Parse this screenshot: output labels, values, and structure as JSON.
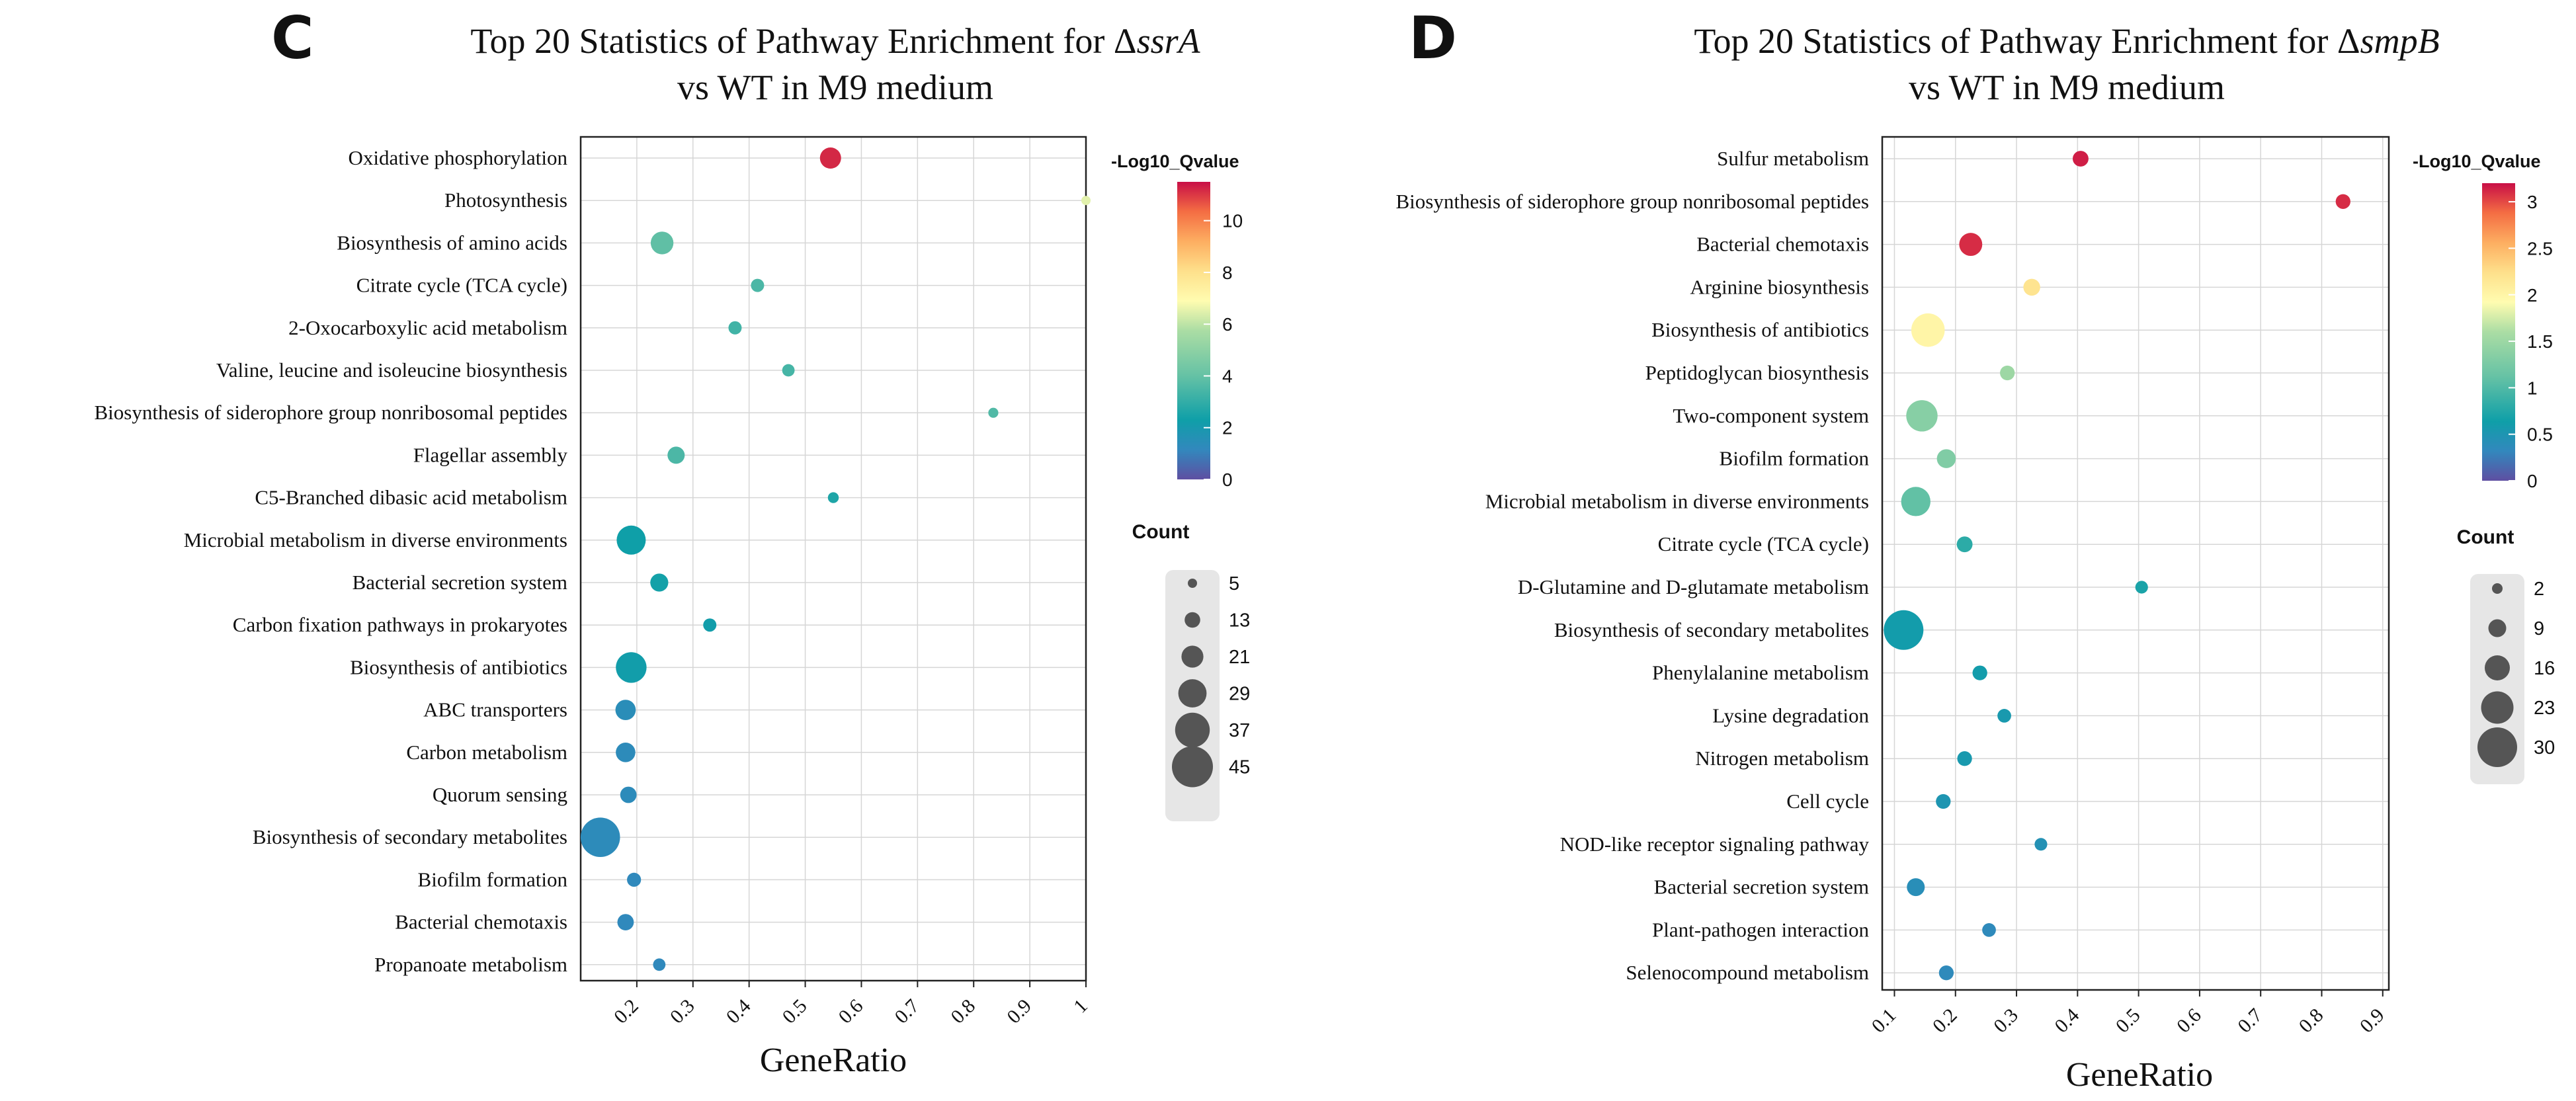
{
  "chart_data": [
    {
      "panel": "C",
      "type": "scatter",
      "title_line1": "Top 20 Statistics of Pathway Enrichment for ",
      "title_delta": "Δ",
      "title_gene": "ssrA",
      "title_line2": "vs WT in M9 medium",
      "xlabel": "GeneRatio",
      "ylabel": "",
      "xlim": [
        0.1,
        1.0
      ],
      "x_ticks": [
        0.2,
        0.3,
        0.4,
        0.5,
        0.6,
        0.7,
        0.8,
        0.9,
        1
      ],
      "x_tick_labels": [
        "0.2",
        "0.3",
        "0.4",
        "0.5",
        "0.6",
        "0.7",
        "0.8",
        "0.9",
        "1"
      ],
      "grid": true,
      "color_legend": {
        "title": "-Log10_Qvalue",
        "min": 0,
        "max": 11.5,
        "ticks": [
          0,
          2,
          4,
          6,
          8,
          10
        ]
      },
      "size_legend": {
        "title": "Count",
        "values": [
          5,
          13,
          21,
          29,
          37,
          45
        ],
        "labels": [
          "5",
          "13",
          "21",
          "29",
          "37",
          "45"
        ],
        "min": 5,
        "max": 45
      },
      "categories": [
        "Oxidative phosphorylation",
        "Photosynthesis",
        "Biosynthesis of amino acids",
        "Citrate cycle (TCA cycle)",
        "2-Oxocarboxylic acid metabolism",
        "Valine, leucine and isoleucine biosynthesis",
        "Biosynthesis of siderophore group nonribosomal peptides",
        "Flagellar assembly",
        "C5-Branched dibasic acid metabolism",
        "Microbial metabolism in diverse environments",
        "Bacterial secretion system",
        "Carbon fixation pathways in prokaryotes",
        "Biosynthesis of antibiotics",
        "ABC transporters",
        "Carbon metabolism",
        "Quorum sensing",
        "Biosynthesis of secondary metabolites",
        "Biofilm formation",
        "Bacterial chemotaxis",
        "Propanoate metabolism"
      ],
      "gene_ratio": [
        0.545,
        1.0,
        0.245,
        0.415,
        0.375,
        0.47,
        0.835,
        0.27,
        0.55,
        0.19,
        0.24,
        0.33,
        0.19,
        0.18,
        0.18,
        0.185,
        0.135,
        0.195,
        0.18,
        0.24
      ],
      "count": [
        20,
        5,
        22,
        10,
        10,
        9,
        6,
        15,
        7,
        30,
        16,
        10,
        32,
        19,
        18,
        14,
        43,
        11,
        14,
        9
      ],
      "neg_log10_q": [
        11.2,
        6.5,
        3.9,
        3.5,
        3.3,
        3.4,
        3.6,
        3.5,
        2.6,
        2.3,
        2.4,
        2.2,
        2.2,
        1.4,
        1.3,
        1.3,
        1.3,
        1.2,
        1.2,
        1.2
      ]
    },
    {
      "panel": "D",
      "type": "scatter",
      "title_line1": "Top 20 Statistics of Pathway Enrichment for ",
      "title_delta": "Δ",
      "title_gene": "smpB",
      "title_line2": "vs WT in M9 medium",
      "xlabel": "GeneRatio",
      "ylabel": "",
      "xlim": [
        0.08,
        0.91
      ],
      "x_ticks": [
        0.1,
        0.2,
        0.3,
        0.4,
        0.5,
        0.6,
        0.7,
        0.8,
        0.9
      ],
      "x_tick_labels": [
        "0.1",
        "0.2",
        "0.3",
        "0.4",
        "0.5",
        "0.6",
        "0.7",
        "0.8",
        "0.9"
      ],
      "grid": true,
      "color_legend": {
        "title": "-Log10_Qvalue",
        "min": 0,
        "max": 3.2,
        "ticks": [
          0,
          0.5,
          1,
          1.5,
          2,
          2.5,
          3
        ]
      },
      "size_legend": {
        "title": "Count",
        "values": [
          2,
          9,
          16,
          23,
          30
        ],
        "labels": [
          "2",
          "9",
          "16",
          "23",
          "30"
        ],
        "min": 2,
        "max": 30
      },
      "categories": [
        "Sulfur metabolism",
        "Biosynthesis of siderophore group nonribosomal peptides",
        "Bacterial chemotaxis",
        "Arginine biosynthesis",
        "Biosynthesis of antibiotics",
        "Peptidoglycan biosynthesis",
        "Two-component system",
        "Biofilm formation",
        "Microbial metabolism in diverse environments",
        "Citrate cycle (TCA cycle)",
        "D-Glutamine and D-glutamate metabolism",
        "Biosynthesis of secondary metabolites",
        "Phenylalanine metabolism",
        "Lysine degradation",
        "Nitrogen metabolism",
        "Cell cycle",
        "NOD-like receptor signaling pathway",
        "Bacterial secretion system",
        "Plant-pathogen interaction",
        "Selenocompound metabolism"
      ],
      "gene_ratio": [
        0.405,
        0.835,
        0.225,
        0.325,
        0.155,
        0.285,
        0.145,
        0.185,
        0.135,
        0.215,
        0.505,
        0.115,
        0.24,
        0.28,
        0.215,
        0.18,
        0.34,
        0.135,
        0.255,
        0.185
      ],
      "count": [
        7,
        6,
        14,
        8,
        24,
        6,
        22,
        10,
        20,
        7,
        4,
        30,
        6,
        5,
        6,
        6,
        4,
        9,
        5,
        6
      ],
      "neg_log10_q": [
        3.15,
        3.1,
        3.1,
        2.2,
        2.0,
        1.5,
        1.35,
        1.3,
        1.1,
        0.8,
        0.7,
        0.6,
        0.6,
        0.55,
        0.55,
        0.5,
        0.45,
        0.4,
        0.35,
        0.35
      ]
    }
  ]
}
